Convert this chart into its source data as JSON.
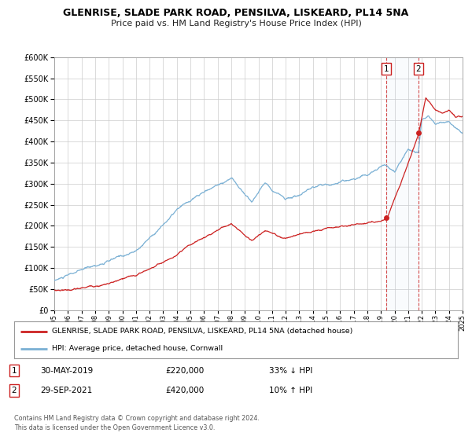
{
  "title": "GLENRISE, SLADE PARK ROAD, PENSILVA, LISKEARD, PL14 5NA",
  "subtitle": "Price paid vs. HM Land Registry's House Price Index (HPI)",
  "legend_line1": "GLENRISE, SLADE PARK ROAD, PENSILVA, LISKEARD, PL14 5NA (detached house)",
  "legend_line2": "HPI: Average price, detached house, Cornwall",
  "footnote1": "Contains HM Land Registry data © Crown copyright and database right 2024.",
  "footnote2": "This data is licensed under the Open Government Licence v3.0.",
  "hpi_color": "#7ab0d4",
  "price_color": "#cc2222",
  "marker_color": "#cc2222",
  "event1_date": "30-MAY-2019",
  "event1_price": "£220,000",
  "event1_pct": "33% ↓ HPI",
  "event1_year": 2019.41,
  "event1_value": 220000,
  "event2_date": "29-SEP-2021",
  "event2_price": "£420,000",
  "event2_pct": "10% ↑ HPI",
  "event2_year": 2021.75,
  "event2_value": 420000,
  "ylim": [
    0,
    600000
  ],
  "yticks": [
    0,
    50000,
    100000,
    150000,
    200000,
    250000,
    300000,
    350000,
    400000,
    450000,
    500000,
    550000,
    600000
  ],
  "xlim_start": 1995,
  "xlim_end": 2025,
  "plot_bg": "#ffffff",
  "grid_color": "#cccccc",
  "fig_bg": "#ffffff"
}
